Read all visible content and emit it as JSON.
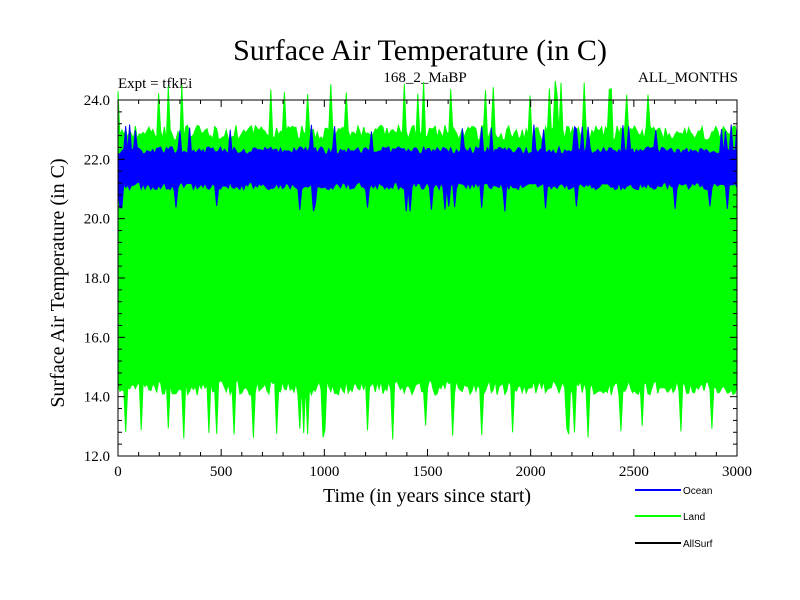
{
  "chart_data": {
    "type": "line",
    "title": "Surface Air Temperature (in C)",
    "subtitle_left": "Expt = tfkEi",
    "subtitle_center": "168_2_MaBP",
    "subtitle_right": "ALL_MONTHS",
    "xlabel": "Time (in years since start)",
    "ylabel": "Surface Air Temperature (in C)",
    "xlim": [
      0,
      3000
    ],
    "ylim": [
      12.0,
      24.0
    ],
    "x_ticks": [
      0,
      500,
      1000,
      1500,
      2000,
      2500,
      3000
    ],
    "y_ticks": [
      "12.0",
      "14.0",
      "16.0",
      "18.0",
      "20.0",
      "22.0",
      "24.0"
    ],
    "series": [
      {
        "name": "Land",
        "color": "#00ff00",
        "min": 14.3,
        "max": 22.9
      },
      {
        "name": "Ocean",
        "color": "#0000ff",
        "min": 21.1,
        "max": 22.3
      },
      {
        "name": "AllSurf",
        "color": "#000000",
        "min": null,
        "max": null
      }
    ],
    "legend": [
      "Ocean",
      "Land",
      "AllSurf"
    ],
    "legend_placement": "bottom-right"
  }
}
